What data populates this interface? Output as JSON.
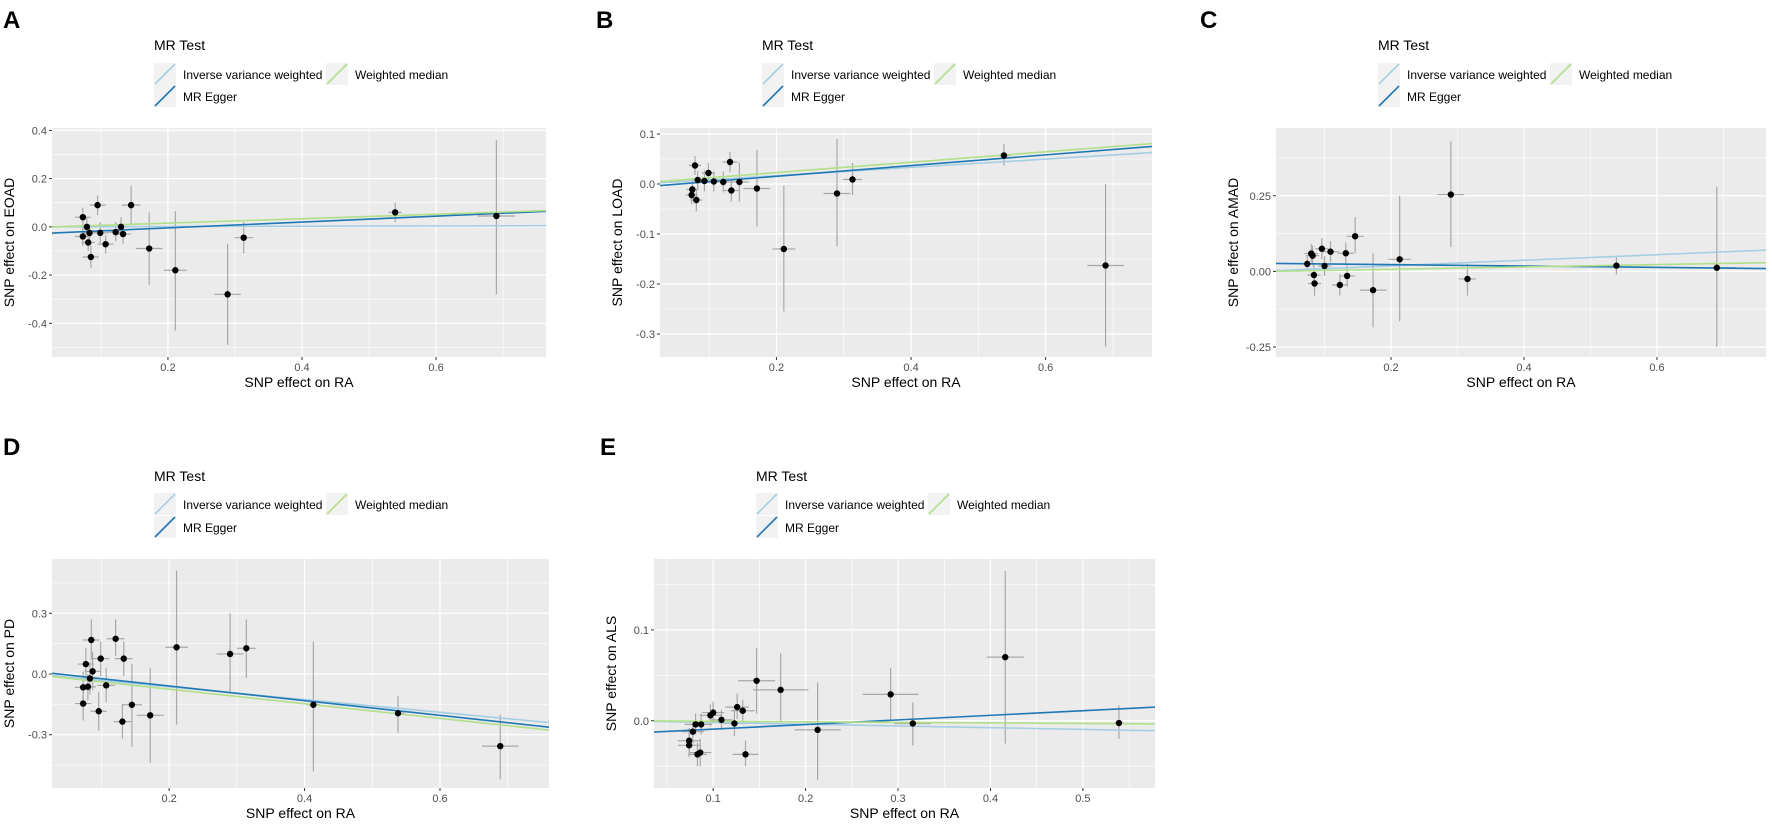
{
  "legend": {
    "title": "MR Test",
    "items": [
      {
        "label": "Inverse variance weighted",
        "color": "#a6cee3"
      },
      {
        "label": "MR Egger",
        "color": "#1f78b4"
      },
      {
        "label": "Weighted median",
        "color": "#b2df8a"
      }
    ]
  },
  "chart_data": [
    {
      "panel": "A",
      "type": "scatter",
      "xlabel": "SNP effect on RA",
      "ylabel": "SNP effect on EOAD",
      "xlim": [
        0.027,
        0.764
      ],
      "ylim": [
        -0.54,
        0.41
      ],
      "xticks": [
        "0.2",
        "0.4",
        "0.6"
      ],
      "xtick_values": [
        0.2,
        0.4,
        0.6
      ],
      "xminor": [
        0.1,
        0.3,
        0.5,
        0.7
      ],
      "yticks": [
        "0.4",
        "0.2",
        "0.0",
        "-0.2",
        "-0.4"
      ],
      "ytick_values": [
        0.4,
        0.2,
        0.0,
        -0.2,
        -0.4
      ],
      "yminor": [
        0.3,
        0.1,
        -0.1,
        -0.3,
        -0.5
      ],
      "point_format": [
        "x",
        "y",
        "x_err",
        "y_lo",
        "y_hi"
      ],
      "points": [
        [
          0.073,
          0.04,
          0.012,
          0.0,
          0.08
        ],
        [
          0.073,
          -0.04,
          0.012,
          -0.08,
          0.0
        ],
        [
          0.079,
          0.0,
          0.01,
          -0.04,
          0.04
        ],
        [
          0.081,
          -0.065,
          0.01,
          -0.1,
          -0.03
        ],
        [
          0.083,
          -0.025,
          0.01,
          -0.06,
          0.01
        ],
        [
          0.085,
          -0.125,
          0.012,
          -0.17,
          -0.08
        ],
        [
          0.095,
          0.09,
          0.012,
          0.05,
          0.13
        ],
        [
          0.099,
          -0.025,
          0.012,
          -0.07,
          0.02
        ],
        [
          0.107,
          -0.072,
          0.012,
          -0.11,
          -0.035
        ],
        [
          0.122,
          -0.022,
          0.012,
          -0.06,
          0.02
        ],
        [
          0.13,
          0.0,
          0.01,
          -0.03,
          0.04
        ],
        [
          0.133,
          -0.03,
          0.012,
          -0.07,
          0.0
        ],
        [
          0.145,
          0.09,
          0.014,
          0.01,
          0.17
        ],
        [
          0.172,
          -0.09,
          0.02,
          -0.24,
          0.06
        ],
        [
          0.211,
          -0.18,
          0.017,
          -0.43,
          0.065
        ],
        [
          0.289,
          -0.28,
          0.02,
          -0.49,
          -0.07
        ],
        [
          0.313,
          -0.045,
          0.014,
          -0.11,
          0.02
        ],
        [
          0.539,
          0.06,
          0.01,
          0.02,
          0.1
        ],
        [
          0.69,
          0.045,
          0.028,
          -0.28,
          0.36
        ]
      ],
      "lines": [
        {
          "method": "Inverse variance weighted",
          "intercept": 0.0,
          "slope": 0.006
        },
        {
          "method": "MR Egger",
          "intercept": -0.029,
          "slope": 0.122
        },
        {
          "method": "Weighted median",
          "intercept": -0.003,
          "slope": 0.092
        }
      ]
    },
    {
      "panel": "B",
      "type": "scatter",
      "xlabel": "SNP effect on RA",
      "ylabel": "SNP effect on LOAD",
      "xlim": [
        0.027,
        0.758
      ],
      "ylim": [
        -0.346,
        0.112
      ],
      "xticks": [
        "0.2",
        "0.4",
        "0.6"
      ],
      "xtick_values": [
        0.2,
        0.4,
        0.6
      ],
      "xminor": [
        0.1,
        0.3,
        0.5,
        0.7
      ],
      "yticks": [
        "0.1",
        "0.0",
        "-0.1",
        "-0.2",
        "-0.3"
      ],
      "ytick_values": [
        0.1,
        0.0,
        -0.1,
        -0.2,
        -0.3
      ],
      "yminor": [
        0.05,
        -0.05,
        -0.15,
        -0.25
      ],
      "point_format": [
        "x",
        "y",
        "x_err",
        "y_lo",
        "y_hi"
      ],
      "points": [
        [
          0.079,
          0.037,
          0.009,
          0.018,
          0.056
        ],
        [
          0.075,
          -0.011,
          0.009,
          -0.03,
          0.008
        ],
        [
          0.074,
          -0.022,
          0.009,
          -0.04,
          -0.004
        ],
        [
          0.081,
          -0.032,
          0.009,
          -0.055,
          -0.01
        ],
        [
          0.083,
          0.008,
          0.009,
          -0.01,
          0.026
        ],
        [
          0.093,
          0.006,
          0.009,
          -0.015,
          0.027
        ],
        [
          0.099,
          0.022,
          0.01,
          0.002,
          0.042
        ],
        [
          0.107,
          0.005,
          0.01,
          -0.015,
          0.025
        ],
        [
          0.121,
          0.004,
          0.01,
          -0.017,
          0.025
        ],
        [
          0.131,
          0.044,
          0.011,
          0.024,
          0.064
        ],
        [
          0.133,
          -0.013,
          0.011,
          -0.035,
          0.009
        ],
        [
          0.145,
          0.004,
          0.014,
          -0.035,
          0.043
        ],
        [
          0.171,
          -0.009,
          0.02,
          -0.085,
          0.068
        ],
        [
          0.211,
          -0.13,
          0.017,
          -0.255,
          -0.003
        ],
        [
          0.29,
          -0.019,
          0.02,
          -0.125,
          0.09
        ],
        [
          0.313,
          0.009,
          0.014,
          -0.022,
          0.042
        ],
        [
          0.538,
          0.057,
          0.01,
          0.037,
          0.08
        ],
        [
          0.689,
          -0.163,
          0.027,
          -0.325,
          0.0
        ]
      ],
      "lines": [
        {
          "method": "Inverse variance weighted",
          "intercept": 0.0,
          "slope": 0.083
        },
        {
          "method": "MR Egger",
          "intercept": -0.006,
          "slope": 0.107
        },
        {
          "method": "Weighted median",
          "intercept": 0.002,
          "slope": 0.104
        }
      ]
    },
    {
      "panel": "C",
      "type": "scatter",
      "xlabel": "SNP effect on RA",
      "ylabel": "SNP effect on AMAD",
      "xlim": [
        0.027,
        0.764
      ],
      "ylim": [
        -0.283,
        0.474
      ],
      "xticks": [
        "0.2",
        "0.4",
        "0.6"
      ],
      "xtick_values": [
        0.2,
        0.4,
        0.6
      ],
      "xminor": [
        0.1,
        0.3,
        0.5,
        0.7
      ],
      "yticks": [
        "0.25",
        "0.00",
        "-0.25"
      ],
      "ytick_values": [
        0.25,
        0.0,
        -0.25
      ],
      "yminor": [
        0.375,
        0.125,
        -0.125
      ],
      "point_format": [
        "x",
        "y",
        "x_err",
        "y_lo",
        "y_hi"
      ],
      "points": [
        [
          0.074,
          0.025,
          0.01,
          0.0,
          0.05
        ],
        [
          0.08,
          0.059,
          0.01,
          0.03,
          0.09
        ],
        [
          0.082,
          0.052,
          0.01,
          0.02,
          0.085
        ],
        [
          0.084,
          -0.012,
          0.01,
          -0.05,
          0.025
        ],
        [
          0.085,
          -0.04,
          0.01,
          -0.08,
          0.0
        ],
        [
          0.096,
          0.075,
          0.01,
          0.04,
          0.11
        ],
        [
          0.1,
          0.018,
          0.01,
          -0.015,
          0.05
        ],
        [
          0.109,
          0.065,
          0.012,
          0.03,
          0.1
        ],
        [
          0.123,
          -0.045,
          0.012,
          -0.08,
          -0.01
        ],
        [
          0.132,
          0.06,
          0.012,
          0.025,
          0.095
        ],
        [
          0.134,
          -0.015,
          0.012,
          -0.05,
          0.02
        ],
        [
          0.146,
          0.116,
          0.013,
          0.06,
          0.18
        ],
        [
          0.173,
          -0.062,
          0.02,
          -0.185,
          0.06
        ],
        [
          0.213,
          0.04,
          0.017,
          -0.165,
          0.25
        ],
        [
          0.29,
          0.254,
          0.02,
          0.08,
          0.43
        ],
        [
          0.315,
          -0.025,
          0.013,
          -0.08,
          0.025
        ],
        [
          0.539,
          0.019,
          0.01,
          -0.01,
          0.05
        ],
        [
          0.69,
          0.012,
          0.028,
          -0.25,
          0.28
        ]
      ],
      "lines": [
        {
          "method": "Inverse variance weighted",
          "intercept": 0.0,
          "slope": 0.092
        },
        {
          "method": "MR Egger",
          "intercept": 0.027,
          "slope": -0.023
        },
        {
          "method": "Weighted median",
          "intercept": -0.001,
          "slope": 0.039
        }
      ]
    },
    {
      "panel": "D",
      "type": "scatter",
      "xlabel": "SNP effect on RA",
      "ylabel": "SNP effect on PD",
      "xlim": [
        0.027,
        0.761
      ],
      "ylim": [
        -0.563,
        0.568
      ],
      "xticks": [
        "0.2",
        "0.4",
        "0.6"
      ],
      "xtick_values": [
        0.2,
        0.4,
        0.6
      ],
      "xminor": [
        0.1,
        0.3,
        0.5,
        0.7
      ],
      "yticks": [
        "0.3",
        "0.0",
        "-0.3"
      ],
      "ytick_values": [
        0.3,
        0.0,
        -0.3
      ],
      "yminor": [
        0.45,
        0.15,
        -0.15,
        -0.45
      ],
      "point_format": [
        "x",
        "y",
        "x_err",
        "y_lo",
        "y_hi"
      ],
      "points": [
        [
          0.073,
          -0.066,
          0.012,
          -0.14,
          0.01
        ],
        [
          0.077,
          0.049,
          0.012,
          -0.03,
          0.13
        ],
        [
          0.08,
          -0.063,
          0.012,
          -0.13,
          0.0
        ],
        [
          0.073,
          -0.146,
          0.012,
          -0.23,
          -0.06
        ],
        [
          0.085,
          0.168,
          0.012,
          0.07,
          0.27
        ],
        [
          0.087,
          0.013,
          0.012,
          -0.08,
          0.11
        ],
        [
          0.083,
          -0.022,
          0.01,
          -0.1,
          0.06
        ],
        [
          0.096,
          -0.184,
          0.012,
          -0.28,
          -0.09
        ],
        [
          0.099,
          0.076,
          0.013,
          -0.01,
          0.16
        ],
        [
          0.107,
          -0.056,
          0.013,
          -0.14,
          0.03
        ],
        [
          0.121,
          0.174,
          0.013,
          0.09,
          0.27
        ],
        [
          0.133,
          0.076,
          0.013,
          -0.01,
          0.16
        ],
        [
          0.131,
          -0.235,
          0.013,
          -0.32,
          -0.15
        ],
        [
          0.145,
          -0.152,
          0.015,
          -0.36,
          0.05
        ],
        [
          0.172,
          -0.204,
          0.02,
          -0.44,
          0.03
        ],
        [
          0.211,
          0.132,
          0.017,
          -0.25,
          0.51
        ],
        [
          0.29,
          0.099,
          0.02,
          -0.09,
          0.3
        ],
        [
          0.314,
          0.127,
          0.014,
          -0.02,
          0.27
        ],
        [
          0.413,
          -0.152,
          0.01,
          -0.48,
          0.16
        ],
        [
          0.538,
          -0.194,
          0.01,
          -0.29,
          -0.11
        ],
        [
          0.689,
          -0.356,
          0.027,
          -0.52,
          -0.2
        ]
      ],
      "lines": [
        {
          "method": "Inverse variance weighted",
          "intercept": 0.0,
          "slope": -0.315
        },
        {
          "method": "MR Egger",
          "intercept": 0.013,
          "slope": -0.362
        },
        {
          "method": "Weighted median",
          "intercept": -0.003,
          "slope": -0.36
        }
      ]
    },
    {
      "panel": "E",
      "type": "scatter",
      "xlabel": "SNP effect on RA",
      "ylabel": "SNP effect on ALS",
      "xlim": [
        0.036,
        0.578
      ],
      "ylim": [
        -0.074,
        0.178
      ],
      "xticks": [
        "0.1",
        "0.2",
        "0.3",
        "0.4",
        "0.5"
      ],
      "xtick_values": [
        0.1,
        0.2,
        0.3,
        0.4,
        0.5
      ],
      "xminor": [
        0.05,
        0.15,
        0.25,
        0.35,
        0.45,
        0.55
      ],
      "yticks": [
        "0.1",
        "0.0"
      ],
      "ytick_values": [
        0.1,
        0.0
      ],
      "yminor": [
        0.15,
        0.05,
        -0.05
      ],
      "point_format": [
        "x",
        "y",
        "x_err",
        "y_lo",
        "y_hi"
      ],
      "points": [
        [
          0.074,
          -0.022,
          0.012,
          -0.035,
          -0.008
        ],
        [
          0.074,
          -0.027,
          0.012,
          -0.04,
          -0.014
        ],
        [
          0.078,
          -0.012,
          0.012,
          -0.025,
          0.0
        ],
        [
          0.081,
          -0.004,
          0.012,
          -0.015,
          0.008
        ],
        [
          0.087,
          -0.004,
          0.012,
          -0.015,
          0.008
        ],
        [
          0.083,
          -0.037,
          0.01,
          -0.05,
          -0.024
        ],
        [
          0.086,
          -0.035,
          0.012,
          -0.05,
          -0.02
        ],
        [
          0.097,
          0.006,
          0.012,
          -0.006,
          0.018
        ],
        [
          0.1,
          0.009,
          0.012,
          -0.003,
          0.021
        ],
        [
          0.109,
          0.001,
          0.012,
          -0.01,
          0.012
        ],
        [
          0.123,
          -0.003,
          0.012,
          -0.017,
          0.011
        ],
        [
          0.126,
          0.015,
          0.013,
          0.002,
          0.03
        ],
        [
          0.132,
          0.011,
          0.013,
          -0.001,
          0.023
        ],
        [
          0.135,
          -0.037,
          0.014,
          -0.05,
          -0.022
        ],
        [
          0.147,
          0.044,
          0.02,
          0.008,
          0.08
        ],
        [
          0.173,
          0.034,
          0.03,
          -0.002,
          0.074
        ],
        [
          0.213,
          -0.01,
          0.025,
          -0.065,
          0.042
        ],
        [
          0.292,
          0.029,
          0.03,
          0.0,
          0.058
        ],
        [
          0.316,
          -0.003,
          0.02,
          -0.027,
          0.02
        ],
        [
          0.416,
          0.07,
          0.02,
          -0.025,
          0.165
        ],
        [
          0.539,
          -0.0025,
          0.005,
          -0.02,
          0.017
        ]
      ],
      "lines": [
        {
          "method": "Inverse variance weighted",
          "intercept": 0.0,
          "slope": -0.019
        },
        {
          "method": "MR Egger",
          "intercept": -0.0143,
          "slope": 0.0507
        },
        {
          "method": "Weighted median",
          "intercept": 0.0,
          "slope": -0.006
        }
      ]
    }
  ]
}
